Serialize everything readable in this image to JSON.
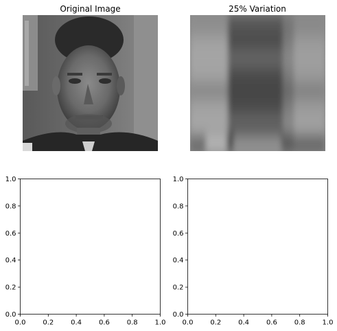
{
  "panels": [
    {
      "title": "Original Image",
      "image": "face-photo-grayscale"
    },
    {
      "title": "25% Variation",
      "image": "blurred-block-reconstruction"
    }
  ],
  "chart_data": [
    {
      "type": "image",
      "title": "Original Image",
      "axis": "off"
    },
    {
      "type": "image",
      "title": "25% Variation",
      "axis": "off"
    },
    {
      "type": "line",
      "title": "",
      "series": [],
      "xlim": [
        0,
        1
      ],
      "ylim": [
        0,
        1
      ],
      "xticks": [
        "0.0",
        "0.2",
        "0.4",
        "0.6",
        "0.8",
        "1.0"
      ],
      "yticks": [
        "0.0",
        "0.2",
        "0.4",
        "0.6",
        "0.8",
        "1.0"
      ]
    },
    {
      "type": "line",
      "title": "",
      "series": [],
      "xlim": [
        0,
        1
      ],
      "ylim": [
        0,
        1
      ],
      "xticks": [
        "0.0",
        "0.2",
        "0.4",
        "0.6",
        "0.8",
        "1.0"
      ],
      "yticks": [
        "0.0",
        "0.2",
        "0.4",
        "0.6",
        "0.8",
        "1.0"
      ]
    }
  ]
}
